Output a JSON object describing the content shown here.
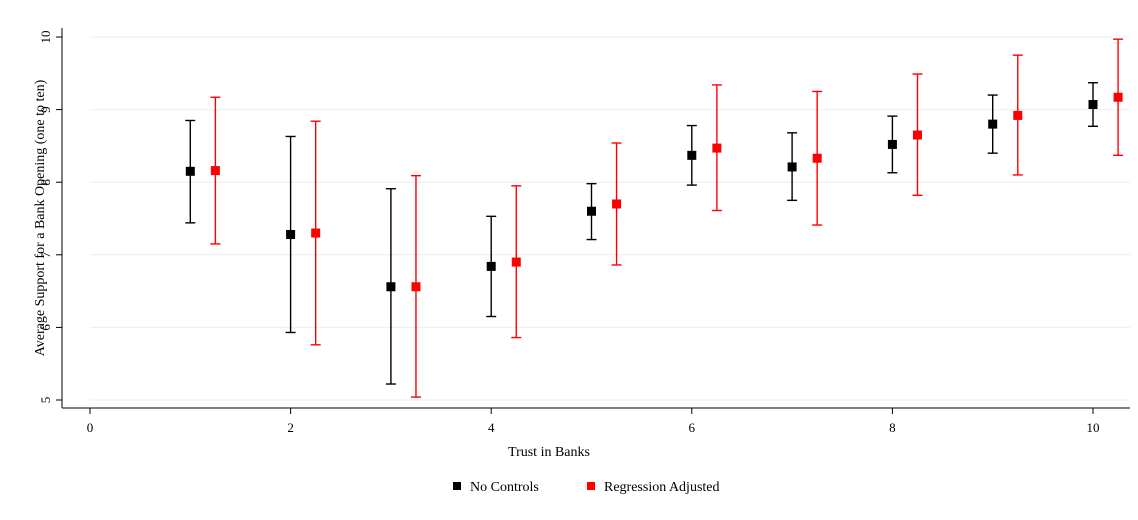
{
  "chart_data": {
    "type": "scatter",
    "title": "",
    "xlabel": "Trust in Banks",
    "ylabel": "Average Support for a Bank Opening (one to ten)",
    "xlim": [
      0,
      10.3
    ],
    "ylim": [
      4.95,
      10.05
    ],
    "xticks": [
      0,
      2,
      4,
      6,
      8,
      10
    ],
    "yticks": [
      5,
      6,
      7,
      8,
      9,
      10
    ],
    "grid": "horizontal",
    "legend_position": "bottom",
    "series": [
      {
        "name": "No Controls",
        "color": "#000000",
        "points": [
          {
            "x": 1,
            "y": 8.15,
            "lo": 7.44,
            "hi": 8.85
          },
          {
            "x": 2,
            "y": 7.28,
            "lo": 5.93,
            "hi": 8.63
          },
          {
            "x": 3,
            "y": 6.56,
            "lo": 5.22,
            "hi": 7.91
          },
          {
            "x": 4,
            "y": 6.84,
            "lo": 6.15,
            "hi": 7.53
          },
          {
            "x": 5,
            "y": 7.6,
            "lo": 7.21,
            "hi": 7.98
          },
          {
            "x": 6,
            "y": 8.37,
            "lo": 7.96,
            "hi": 8.78
          },
          {
            "x": 7,
            "y": 8.21,
            "lo": 7.75,
            "hi": 8.68
          },
          {
            "x": 8,
            "y": 8.52,
            "lo": 8.13,
            "hi": 8.91
          },
          {
            "x": 9,
            "y": 8.8,
            "lo": 8.4,
            "hi": 9.2
          },
          {
            "x": 10,
            "y": 9.07,
            "lo": 8.77,
            "hi": 9.37
          }
        ]
      },
      {
        "name": "Regression Adjusted",
        "color": "#ff0000",
        "points": [
          {
            "x": 1.25,
            "y": 8.16,
            "lo": 7.15,
            "hi": 9.17
          },
          {
            "x": 2.25,
            "y": 7.3,
            "lo": 5.76,
            "hi": 8.84
          },
          {
            "x": 3.25,
            "y": 6.56,
            "lo": 5.04,
            "hi": 8.09
          },
          {
            "x": 4.25,
            "y": 6.9,
            "lo": 5.86,
            "hi": 7.95
          },
          {
            "x": 5.25,
            "y": 7.7,
            "lo": 6.86,
            "hi": 8.54
          },
          {
            "x": 6.25,
            "y": 8.47,
            "lo": 7.61,
            "hi": 9.34
          },
          {
            "x": 7.25,
            "y": 8.33,
            "lo": 7.41,
            "hi": 9.25
          },
          {
            "x": 8.25,
            "y": 8.65,
            "lo": 7.82,
            "hi": 9.49
          },
          {
            "x": 9.25,
            "y": 8.92,
            "lo": 8.1,
            "hi": 9.75
          },
          {
            "x": 10.25,
            "y": 9.17,
            "lo": 8.37,
            "hi": 9.97
          }
        ]
      }
    ]
  }
}
